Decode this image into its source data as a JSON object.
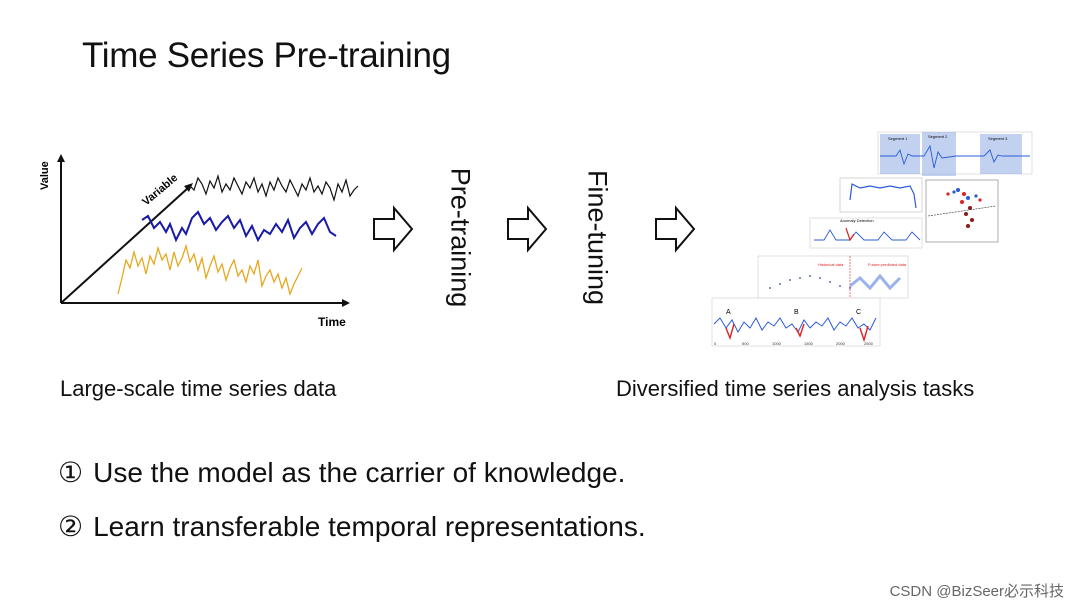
{
  "title": "Time Series Pre-training",
  "left_chart": {
    "axis_y_label": "Value",
    "axis_x_label": "Time",
    "axis_z_label": "Variable",
    "series_colors": [
      "#111111",
      "#1a1aa8",
      "#e6a81e"
    ]
  },
  "captions": {
    "left": "Large-scale time series data",
    "right": "Diversified time series analysis tasks"
  },
  "steps": {
    "pretraining": "Pre-training",
    "finetuning": "Fine-tuning"
  },
  "tasks_collage": {
    "segment_labels": [
      "Segment 1",
      "Segment 2",
      "Segment 3"
    ],
    "anomaly_title": "Anomaly Detection",
    "forecast_labels": [
      "Historical data",
      "Future predicted data"
    ],
    "series_labels": [
      "A",
      "B",
      "C"
    ],
    "x_ticks": [
      "0",
      "500",
      "1000",
      "1500",
      "2000",
      "2500"
    ],
    "accent_colors": [
      "#2a5bd7",
      "#d22",
      "#9bb3e8"
    ]
  },
  "bullets": [
    {
      "num": "①",
      "text": "Use the model as the carrier of knowledge."
    },
    {
      "num": "②",
      "text": "Learn transferable temporal representations."
    }
  ],
  "watermark": "CSDN @BizSeer必示科技"
}
